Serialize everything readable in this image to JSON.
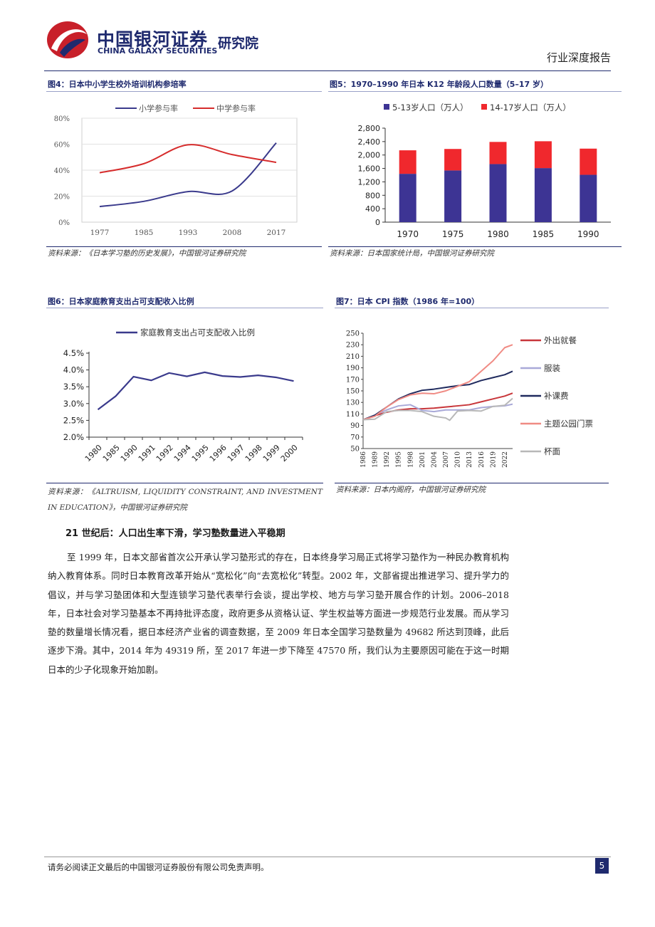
{
  "header": {
    "brand_cn": "中国银河证券",
    "brand_en": "CHINA GALAXY SECURITIES",
    "institute": "研究院",
    "report_type": "行业深度报告",
    "colors": {
      "brand_blue": "#1f2a6e",
      "brand_red": "#c8202a"
    }
  },
  "figures": {
    "fig4": {
      "title": "图4：日本中小学生校外培训机构参培率",
      "source": "资料来源：《日本学习塾的历史发展》，中国银河证券研究院"
    },
    "fig5": {
      "title": "图5：1970–1990 年日本 K12 年龄段人口数量（5–17 岁）",
      "source": "资料来源：日本国家统计局，中国银河证券研究院"
    },
    "fig6": {
      "title": "图6：日本家庭教育支出占可支配收入比例",
      "source": "资料来源：《ALTRUISM, LIQUIDITY CONSTRAINT, AND INVESTMENT IN EDUCATION》，中国银河证券研究院"
    },
    "fig7": {
      "title": "图7：日本 CPI 指数（1986 年=100）",
      "source": "资料来源：日本内阁府，中国银河证券研究院"
    }
  },
  "chart_data": [
    {
      "id": "fig4",
      "type": "line",
      "x": [
        "1977",
        "1985",
        "1993",
        "2008",
        "2017"
      ],
      "ylim": [
        0,
        80
      ],
      "yticks": [
        "0%",
        "20%",
        "40%",
        "60%",
        "80%"
      ],
      "legend_position": "top",
      "series": [
        {
          "name": "小学参与率",
          "values": [
            12,
            16,
            23.5,
            24,
            61
          ],
          "color": "#3a3a8c"
        },
        {
          "name": "中学参与率",
          "values": [
            38,
            45,
            59.5,
            52,
            46
          ],
          "color": "#d62c2c"
        }
      ]
    },
    {
      "id": "fig5",
      "type": "bar",
      "stacked": true,
      "categories": [
        "1970",
        "1975",
        "1980",
        "1985",
        "1990"
      ],
      "ylim": [
        0,
        2800
      ],
      "yticks": [
        "0",
        "400",
        "800",
        "1,200",
        "1,600",
        "2,000",
        "2,400",
        "2,800"
      ],
      "legend_position": "top",
      "series": [
        {
          "name": "5-13岁人口（万人）",
          "values": [
            1440,
            1540,
            1730,
            1610,
            1410
          ],
          "color": "#3d3494"
        },
        {
          "name": "14-17岁人口（万人）",
          "values": [
            700,
            640,
            660,
            800,
            780
          ],
          "color": "#f0282d"
        }
      ]
    },
    {
      "id": "fig6",
      "type": "line",
      "x": [
        "1980",
        "1985",
        "1990",
        "1991",
        "1992",
        "1994",
        "1995",
        "1996",
        "1997",
        "1998",
        "1999",
        "2000"
      ],
      "ylim": [
        2.0,
        4.5
      ],
      "yticks": [
        "2.0%",
        "2.5%",
        "3.0%",
        "3.5%",
        "4.0%",
        "4.5%"
      ],
      "legend_position": "top",
      "series": [
        {
          "name": "家庭教育支出占可支配收入比例",
          "values": [
            2.82,
            3.22,
            3.8,
            3.69,
            3.91,
            3.81,
            3.93,
            3.82,
            3.79,
            3.84,
            3.78,
            3.67
          ],
          "color": "#3a3a8c"
        }
      ]
    },
    {
      "id": "fig7",
      "type": "line",
      "x_ticks": [
        "1986",
        "1989",
        "1992",
        "1995",
        "1998",
        "2001",
        "2004",
        "2007",
        "2010",
        "2013",
        "2016",
        "2019",
        "2022"
      ],
      "xlim": [
        1986,
        2024
      ],
      "ylim": [
        50,
        250
      ],
      "yticks": [
        "50",
        "70",
        "90",
        "110",
        "130",
        "150",
        "170",
        "190",
        "210",
        "230",
        "250"
      ],
      "legend_position": "right",
      "series": [
        {
          "name": "外出就餐",
          "color": "#c8363a",
          "x": [
            1986,
            1989,
            1992,
            1995,
            1998,
            2001,
            2004,
            2007,
            2010,
            2013,
            2016,
            2019,
            2022,
            2024
          ],
          "values": [
            100,
            107,
            113,
            117,
            119,
            119,
            120,
            122,
            124,
            126,
            131,
            136,
            141,
            146
          ]
        },
        {
          "name": "服装",
          "color": "#a9a9d8",
          "x": [
            1986,
            1989,
            1992,
            1995,
            1998,
            2001,
            2004,
            2007,
            2010,
            2013,
            2016,
            2019,
            2022,
            2024
          ],
          "values": [
            100,
            108,
            117,
            124,
            126,
            116,
            114,
            117,
            117,
            117,
            121,
            123,
            124,
            127
          ]
        },
        {
          "name": "补课费",
          "color": "#1f2a5e",
          "x": [
            1986,
            1989,
            1992,
            1995,
            1998,
            2001,
            2004,
            2007,
            2010,
            2013,
            2016,
            2019,
            2022,
            2024
          ],
          "values": [
            100,
            108,
            122,
            136,
            145,
            151,
            153,
            156,
            159,
            161,
            168,
            173,
            178,
            184
          ]
        },
        {
          "name": "主题公园门票",
          "color": "#f08b84",
          "x": [
            1986,
            1989,
            1992,
            1995,
            1998,
            2001,
            2004,
            2007,
            2010,
            2013,
            2016,
            2019,
            2022,
            2024
          ],
          "values": [
            100,
            106,
            122,
            135,
            143,
            146,
            145,
            150,
            158,
            166,
            184,
            202,
            225,
            230
          ]
        },
        {
          "name": "杯面",
          "color": "#b8b8b8",
          "x": [
            1986,
            1989,
            1992,
            1995,
            1998,
            2001,
            2004,
            2007,
            2008,
            2010,
            2013,
            2016,
            2019,
            2022,
            2024
          ],
          "values": [
            100,
            101,
            114,
            116,
            116,
            114,
            106,
            103,
            99,
            115,
            116,
            115,
            123,
            125,
            137
          ]
        }
      ]
    }
  ],
  "section": {
    "heading": "21 世纪后：人口出生率下滑，学习塾数量进入平稳期",
    "body": "至 1999 年，日本文部省首次公开承认学习塾形式的存在，日本终身学习局正式将学习塾作为一种民办教育机构纳入教育体系。同时日本教育改革开始从“宽松化”向“去宽松化”转型。2002 年，文部省提出推进学习、提升学力的倡议，并与学习塾团体和大型连锁学习塾代表举行会谈，提出学校、地方与学习塾开展合作的计划。2006–2018 年，日本社会对学习塾基本不再持批评态度，政府更多从资格认证、学生权益等方面进一步规范行业发展。而从学习塾的数量增长情况看，据日本经济产业省的调查数据，至 2009 年日本全国学习塾数量为 49682 所达到顶峰，此后逐步下滑。其中，2014 年为 49319 所，至 2017 年进一步下降至 47570 所，我们认为主要原因可能在于这一时期日本的少子化现象开始加剧。"
  },
  "footer": {
    "disclaimer": "请务必阅读正文最后的中国银河证券股份有限公司免责声明。",
    "page_number": "5"
  }
}
